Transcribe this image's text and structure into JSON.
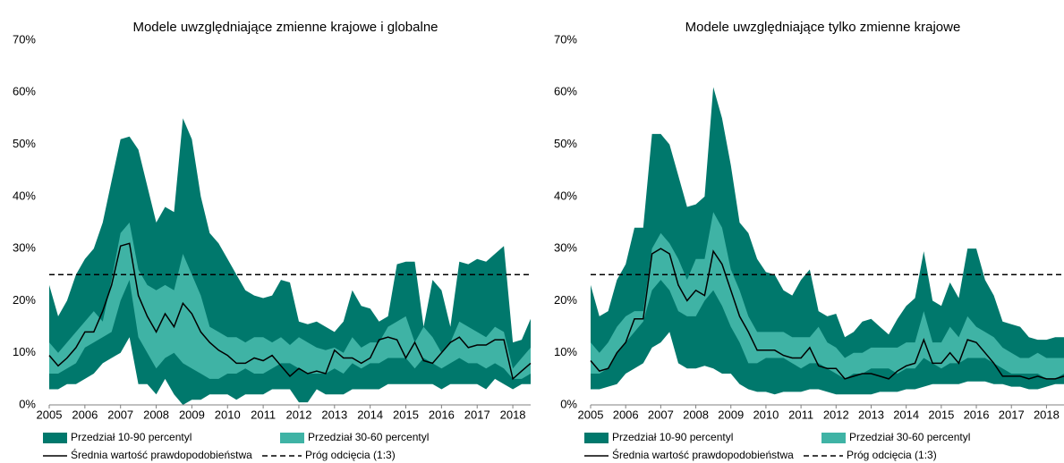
{
  "chart_data": [
    {
      "type": "band",
      "title": "Modele uwzględniające zmienne krajowe i globalne",
      "categories": [
        "2005",
        null,
        null,
        null,
        "2006",
        null,
        null,
        null,
        "2007",
        null,
        null,
        null,
        "2008",
        null,
        null,
        null,
        "2009",
        null,
        null,
        null,
        "2010",
        null,
        null,
        null,
        "2011",
        null,
        null,
        null,
        "2012",
        null,
        null,
        null,
        "2013",
        null,
        null,
        null,
        "2014",
        null,
        null,
        null,
        "2015",
        null,
        null,
        null,
        "2016",
        null,
        null,
        null,
        "2017",
        null,
        null,
        null,
        "2018",
        null,
        null
      ],
      "ylim": [
        0,
        70
      ],
      "yticks": [
        {
          "value": 0,
          "label": "0%"
        },
        {
          "value": 10,
          "label": "10%"
        },
        {
          "value": 20,
          "label": "20%"
        },
        {
          "value": 30,
          "label": "30%"
        },
        {
          "value": 40,
          "label": "40%"
        },
        {
          "value": 50,
          "label": "50%"
        },
        {
          "value": 60,
          "label": "60%"
        },
        {
          "value": 70,
          "label": "70%"
        }
      ],
      "bands": [
        {
          "name": "Przedział 10-90 percentyl",
          "color": "#00786c",
          "lower": [
            3,
            3,
            4,
            4,
            5,
            6,
            8,
            9,
            10,
            13,
            4,
            4,
            2,
            5,
            2,
            0,
            1,
            1,
            2,
            2,
            2,
            1,
            2,
            2,
            2,
            3,
            3,
            3,
            0.5,
            0.5,
            3,
            2,
            2,
            2,
            3,
            3,
            3,
            3,
            4,
            4,
            4,
            4,
            4,
            4,
            3,
            4,
            4,
            4,
            4,
            3,
            5,
            4,
            3,
            4,
            4
          ],
          "upper": [
            23,
            17,
            20,
            25,
            28,
            30,
            35,
            43,
            51,
            51.5,
            49,
            42,
            35,
            38,
            37,
            55,
            51,
            40,
            33,
            31,
            28,
            25,
            22,
            21,
            20.5,
            21,
            24,
            23.5,
            16,
            15.5,
            16,
            15,
            14,
            16,
            22,
            19,
            18.5,
            16,
            17,
            27,
            27.5,
            27.5,
            15,
            24,
            22,
            15,
            27.5,
            27,
            28,
            27.5,
            29,
            30.5,
            12,
            12.5,
            16.5
          ]
        },
        {
          "name": "Przedział 30-60 percentyl",
          "color": "#3fb3a5",
          "lower": [
            6,
            6,
            7,
            8,
            11,
            12,
            13,
            14,
            20,
            24,
            13,
            10,
            7,
            9,
            10,
            8,
            7,
            6,
            5,
            5,
            6,
            6,
            7,
            6,
            6,
            7,
            8,
            8,
            7,
            6,
            6,
            6,
            7,
            6,
            8,
            7,
            8,
            8,
            9,
            9,
            9,
            7,
            9,
            8,
            7,
            8,
            9,
            8,
            8,
            7,
            8,
            7,
            5,
            5,
            6
          ],
          "upper": [
            12,
            10,
            12,
            14,
            16,
            18,
            16,
            24,
            33,
            35,
            26,
            23,
            22,
            23,
            22,
            29,
            25,
            21,
            15,
            14,
            13,
            13,
            12,
            13,
            13,
            12,
            13,
            11.5,
            13,
            12,
            11,
            10.5,
            11,
            10,
            13,
            11,
            12,
            12,
            15,
            16,
            17,
            12,
            15,
            13,
            10,
            12,
            16,
            15,
            14,
            13,
            15,
            14,
            7,
            9,
            11
          ]
        }
      ],
      "series": [
        {
          "name": "Średnia wartość prawdopodobieństwa",
          "color": "#000000",
          "values": [
            9.5,
            7.5,
            9,
            11,
            14,
            14,
            18,
            23,
            30.5,
            31,
            21,
            17,
            14,
            17.5,
            15,
            19.5,
            17.5,
            14,
            12,
            10.5,
            9.5,
            8,
            8,
            9,
            8.5,
            9.5,
            7.5,
            5.5,
            7,
            6,
            6.5,
            6,
            10.5,
            9,
            9,
            8,
            9,
            12.5,
            13,
            12.5,
            9,
            12,
            8.5,
            8,
            10,
            12,
            13,
            11,
            11.5,
            11.5,
            12.5,
            12.5,
            5,
            6.5,
            8
          ]
        }
      ],
      "threshold": {
        "name": "Próg odcięcia (1:3)",
        "value": 25,
        "color": "#000000"
      }
    },
    {
      "type": "band",
      "title": "Modele uwzględniające tylko zmienne krajowe",
      "categories": [
        "2005",
        null,
        null,
        null,
        "2006",
        null,
        null,
        null,
        "2007",
        null,
        null,
        null,
        "2008",
        null,
        null,
        null,
        "2009",
        null,
        null,
        null,
        "2010",
        null,
        null,
        null,
        "2011",
        null,
        null,
        null,
        "2012",
        null,
        null,
        null,
        "2013",
        null,
        null,
        null,
        "2014",
        null,
        null,
        null,
        "2015",
        null,
        null,
        null,
        "2016",
        null,
        null,
        null,
        "2017",
        null,
        null,
        null,
        "2018",
        null,
        null
      ],
      "ylim": [
        0,
        70
      ],
      "yticks": [
        {
          "value": 0,
          "label": "0%"
        },
        {
          "value": 10,
          "label": "10%"
        },
        {
          "value": 20,
          "label": "20%"
        },
        {
          "value": 30,
          "label": "30%"
        },
        {
          "value": 40,
          "label": "40%"
        },
        {
          "value": 50,
          "label": "50%"
        },
        {
          "value": 60,
          "label": "60%"
        },
        {
          "value": 70,
          "label": "70%"
        }
      ],
      "bands": [
        {
          "name": "Przedział 10-90 percentyl",
          "color": "#00786c",
          "lower": [
            3,
            3,
            3.5,
            4,
            6,
            7,
            8,
            11,
            12,
            14,
            8,
            7,
            7,
            7.5,
            7,
            6,
            6,
            4,
            3,
            2.5,
            2.5,
            2,
            2.5,
            2.5,
            2.5,
            3,
            3,
            2.5,
            2,
            2,
            2,
            2,
            2,
            2.5,
            2.5,
            2.5,
            3,
            3,
            3.5,
            4,
            4,
            4,
            4,
            4.5,
            4.5,
            4.5,
            4,
            4,
            3.5,
            3.5,
            3,
            3,
            3.5,
            4,
            4
          ],
          "upper": [
            23,
            17,
            18,
            24,
            27,
            34,
            34,
            52,
            52,
            50,
            44,
            38,
            38.5,
            40,
            61,
            55,
            46,
            35,
            33,
            28,
            25.5,
            25,
            22,
            21,
            24,
            26,
            18,
            17,
            17.5,
            13,
            14,
            16,
            16.5,
            15,
            13.5,
            16.5,
            19,
            20.5,
            29.5,
            20,
            19,
            23.5,
            20.5,
            30,
            30,
            24,
            21,
            16,
            15.5,
            15,
            13,
            12.5,
            12.5,
            13,
            13
          ]
        },
        {
          "name": "Przedział 30-60 percentyl",
          "color": "#3fb3a5",
          "lower": [
            6,
            6,
            7,
            10,
            12,
            14,
            16,
            22,
            24,
            22,
            18,
            17,
            17,
            20,
            22,
            19,
            15,
            12,
            8,
            8,
            9,
            9,
            9,
            8,
            7,
            8,
            8,
            7,
            6,
            5,
            6,
            6,
            7,
            7,
            7,
            6,
            7,
            7,
            9,
            8,
            7,
            8,
            8,
            9,
            9,
            9,
            8,
            7,
            6,
            6,
            6,
            6,
            5,
            5,
            6
          ],
          "upper": [
            12,
            10,
            12,
            15,
            17,
            18,
            18,
            30,
            33,
            31,
            28,
            24,
            28,
            28,
            37,
            34,
            26,
            22,
            17,
            14,
            14,
            14,
            14,
            13,
            13,
            13,
            15,
            12,
            11,
            9,
            10,
            10,
            11,
            11,
            11,
            11,
            12,
            12,
            18,
            12,
            12,
            15,
            13,
            17,
            15,
            14,
            13,
            11,
            10,
            9,
            9,
            10,
            9,
            9,
            9
          ]
        }
      ],
      "series": [
        {
          "name": "Średnia wartość prawdopodobieństwa",
          "color": "#000000",
          "values": [
            8.5,
            6.5,
            7,
            10,
            12,
            16.5,
            16.5,
            29,
            30,
            29,
            23,
            20,
            22,
            21,
            29.5,
            27,
            22,
            17,
            14,
            10.5,
            10.5,
            10.5,
            9.5,
            9,
            9,
            11,
            7.5,
            7,
            7,
            5,
            5.5,
            6,
            6,
            5.5,
            5,
            6.5,
            7.5,
            8,
            12.5,
            8,
            8,
            10,
            8,
            12.5,
            12,
            10,
            8,
            5.5,
            5.5,
            5.5,
            5,
            5.5,
            5,
            5,
            5.5
          ]
        }
      ],
      "threshold": {
        "name": "Próg odcięcia (1:3)",
        "value": 25,
        "color": "#000000"
      }
    }
  ]
}
